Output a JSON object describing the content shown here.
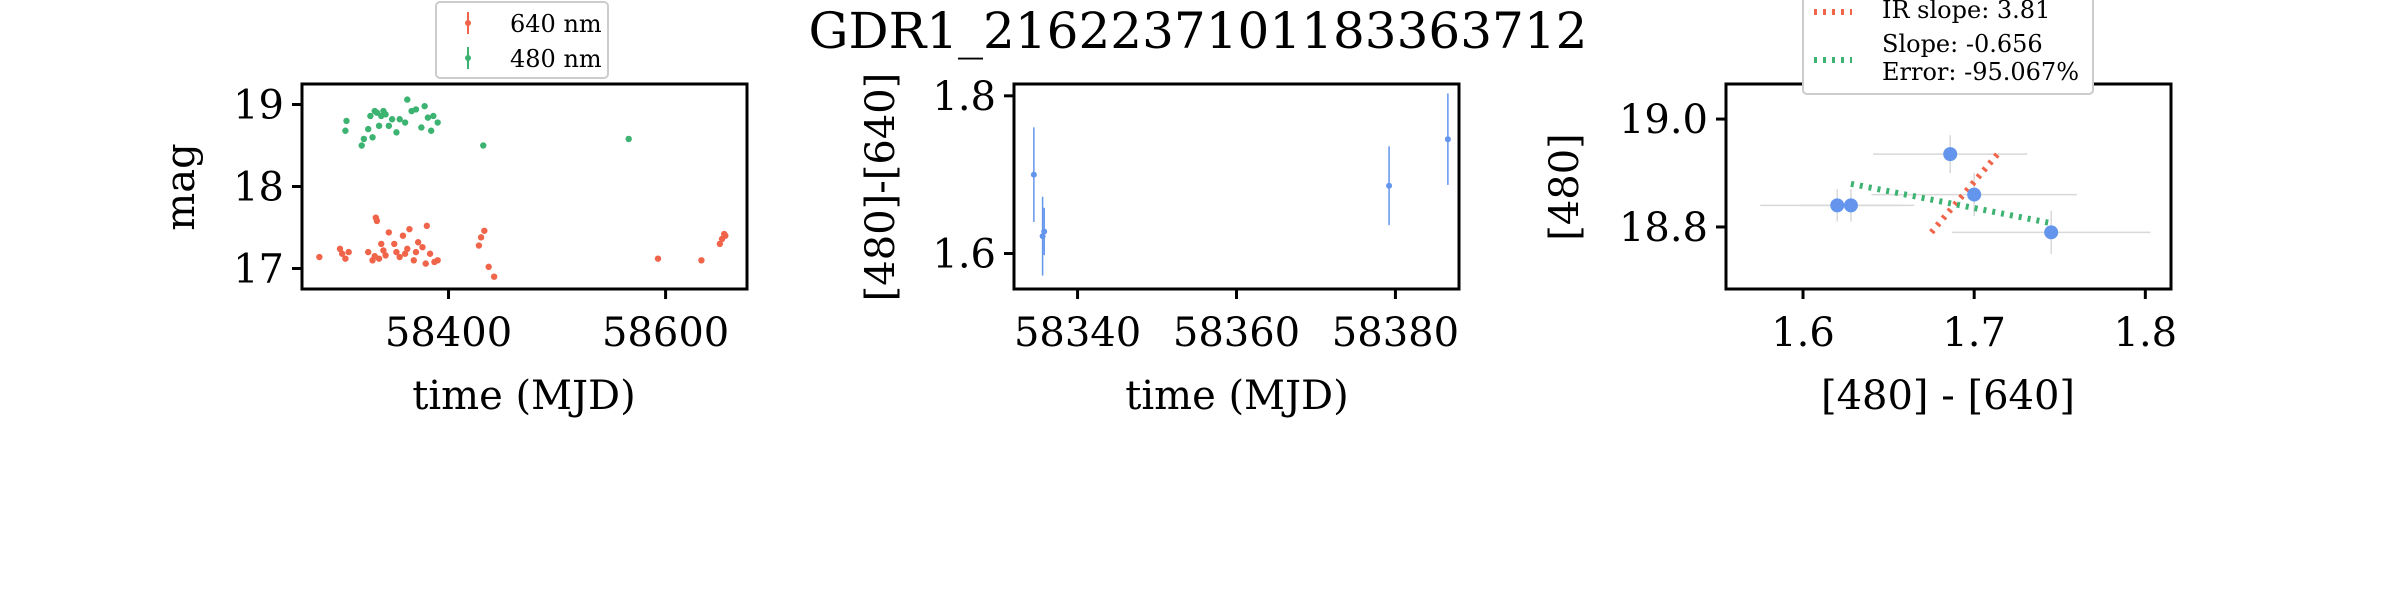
{
  "chart_data": {
    "title": "GDR1_2162237101183363712",
    "colors": {
      "red": "#f0644a",
      "green": "#3cb371",
      "blue": "#6495ed",
      "errgray": "#d8d8d8"
    },
    "panels": [
      {
        "id": "lightcurve",
        "type": "scatter",
        "xlabel": "time (MJD)",
        "ylabel": "mag",
        "xlim": [
          58265,
          58675
        ],
        "ylim": [
          19.25,
          16.75
        ],
        "xticks": [
          58400,
          58600
        ],
        "yticks": [
          17,
          18,
          19
        ],
        "legend": {
          "placement": "top-center",
          "entries": [
            "640 nm",
            "480 nm"
          ]
        },
        "series": [
          {
            "name": "640 nm",
            "color": "red",
            "points": [
              [
                58281,
                17.14
              ],
              [
                58300,
                17.24
              ],
              [
                58302,
                17.18
              ],
              [
                58305,
                17.12
              ],
              [
                58308,
                17.2
              ],
              [
                58326,
                17.2
              ],
              [
                58330,
                17.1
              ],
              [
                58332,
                17.15
              ],
              [
                58333,
                17.62
              ],
              [
                58334,
                17.58
              ],
              [
                58336,
                17.12
              ],
              [
                58338,
                17.3
              ],
              [
                58340,
                17.22
              ],
              [
                58342,
                17.16
              ],
              [
                58345,
                17.44
              ],
              [
                58350,
                17.3
              ],
              [
                58352,
                17.2
              ],
              [
                58355,
                17.14
              ],
              [
                58358,
                17.4
              ],
              [
                58360,
                17.18
              ],
              [
                58362,
                17.24
              ],
              [
                58364,
                17.48
              ],
              [
                58368,
                17.1
              ],
              [
                58370,
                17.2
              ],
              [
                58372,
                17.32
              ],
              [
                58376,
                17.26
              ],
              [
                58379,
                17.06
              ],
              [
                58380,
                17.52
              ],
              [
                58383,
                17.18
              ],
              [
                58387,
                17.08
              ],
              [
                58390,
                17.1
              ],
              [
                58428,
                17.28
              ],
              [
                58430,
                17.38
              ],
              [
                58433,
                17.46
              ],
              [
                58437,
                17.02
              ],
              [
                58442,
                16.9
              ],
              [
                58593,
                17.12
              ],
              [
                58633,
                17.1
              ],
              [
                58650,
                17.3
              ],
              [
                58652,
                17.36
              ],
              [
                58654,
                17.42
              ],
              [
                58655,
                17.4
              ]
            ]
          },
          {
            "name": "480 nm",
            "color": "green",
            "points": [
              [
                58305,
                18.68
              ],
              [
                58306,
                18.8
              ],
              [
                58320,
                18.5
              ],
              [
                58322,
                18.58
              ],
              [
                58326,
                18.7
              ],
              [
                58328,
                18.86
              ],
              [
                58330,
                18.6
              ],
              [
                58332,
                18.92
              ],
              [
                58334,
                18.9
              ],
              [
                58336,
                18.74
              ],
              [
                58338,
                18.86
              ],
              [
                58340,
                18.92
              ],
              [
                58342,
                18.88
              ],
              [
                58345,
                18.74
              ],
              [
                58348,
                18.82
              ],
              [
                58352,
                18.66
              ],
              [
                58355,
                18.82
              ],
              [
                58360,
                18.78
              ],
              [
                58362,
                19.06
              ],
              [
                58366,
                18.92
              ],
              [
                58370,
                18.94
              ],
              [
                58375,
                18.72
              ],
              [
                58378,
                18.98
              ],
              [
                58381,
                18.84
              ],
              [
                58384,
                18.68
              ],
              [
                58386,
                18.86
              ],
              [
                58390,
                18.78
              ],
              [
                58432,
                18.5
              ],
              [
                58566,
                18.58
              ]
            ]
          }
        ]
      },
      {
        "id": "color-time",
        "type": "scatter",
        "xlabel": "time (MJD)",
        "ylabel": "[480]-[640]",
        "xlim": [
          58332,
          58388
        ],
        "ylim": [
          1.815,
          1.555
        ],
        "xticks": [
          58340,
          58360,
          58380
        ],
        "xtick_labels": [
          "58340",
          "58360",
          "58380"
        ],
        "yticks": [
          1.6,
          1.8
        ],
        "ytick_labels": [
          "1.6",
          "1.8"
        ],
        "series": [
          {
            "name": "",
            "color": "blue",
            "points": [
              {
                "x": 58334.5,
                "y": 1.7,
                "err": 0.06
              },
              {
                "x": 58335.6,
                "y": 1.622,
                "err": 0.05
              },
              {
                "x": 58335.8,
                "y": 1.628,
                "err": 0.03
              },
              {
                "x": 58379.2,
                "y": 1.686,
                "err": 0.05
              },
              {
                "x": 58386.6,
                "y": 1.745,
                "err": 0.058
              }
            ]
          }
        ]
      },
      {
        "id": "color-mag",
        "type": "scatter",
        "xlabel": "[480] - [640]",
        "ylabel": "[480]",
        "xlim": [
          1.555,
          1.815
        ],
        "ylim": [
          19.065,
          18.685
        ],
        "xticks": [
          1.6,
          1.7,
          1.8
        ],
        "xtick_labels": [
          "1.6",
          "1.7",
          "1.8"
        ],
        "yticks": [
          18.8,
          19.0
        ],
        "ytick_labels": [
          "18.8",
          "19.0"
        ],
        "legend": {
          "placement": "top-center",
          "entries": [
            {
              "label": "IR slope: 3.81",
              "color": "red"
            },
            {
              "label": "Slope: -0.656",
              "label2": "Error: -95.067%",
              "color": "green"
            }
          ]
        },
        "series": [
          {
            "name": "",
            "color": "blue",
            "points": [
              {
                "x": 1.62,
                "y": 18.84,
                "xerr": 0.045,
                "yerr": 0.03
              },
              {
                "x": 1.628,
                "y": 18.84,
                "xerr": 0.03,
                "yerr": 0.03
              },
              {
                "x": 1.7,
                "y": 18.86,
                "xerr": 0.06,
                "yerr": 0.04
              },
              {
                "x": 1.686,
                "y": 18.935,
                "xerr": 0.045,
                "yerr": 0.035
              },
              {
                "x": 1.745,
                "y": 18.79,
                "xerr": 0.058,
                "yerr": 0.04
              }
            ]
          }
        ],
        "lines": [
          {
            "name": "IR slope: 3.81",
            "color": "red",
            "points": [
              [
                1.675,
                18.79
              ],
              [
                1.715,
                18.94
              ]
            ]
          },
          {
            "name": "Slope: -0.656",
            "color": "green",
            "points": [
              [
                1.628,
                18.88
              ],
              [
                1.745,
                18.807
              ]
            ]
          }
        ]
      }
    ]
  }
}
